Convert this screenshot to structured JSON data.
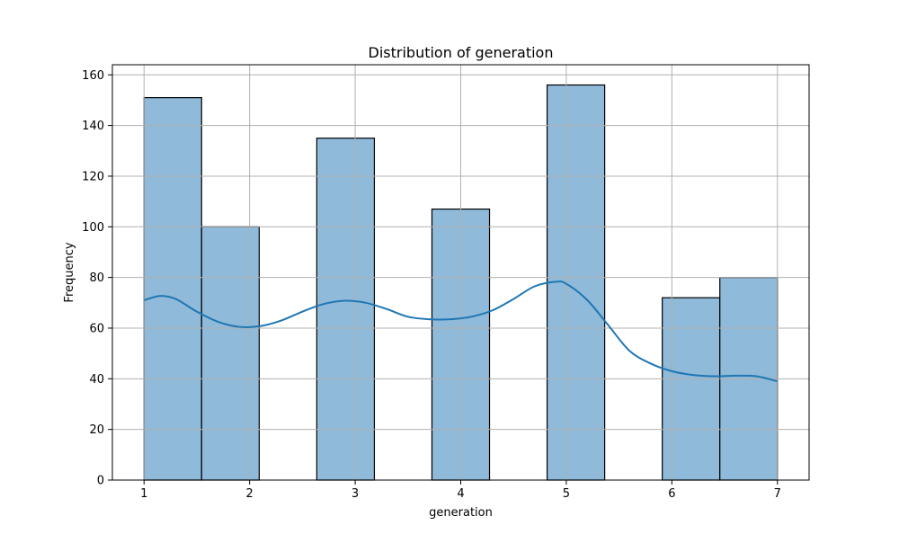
{
  "chart_data": {
    "type": "bar",
    "title": "Distribution of generation",
    "xlabel": "generation",
    "ylabel": "Frequency",
    "xlim": [
      0.7,
      7.3
    ],
    "ylim": [
      0,
      164
    ],
    "grid": true,
    "x_ticks": [
      1,
      2,
      3,
      4,
      5,
      6,
      7
    ],
    "y_ticks": [
      0,
      20,
      40,
      60,
      80,
      100,
      120,
      140,
      160
    ],
    "bins": [
      {
        "start": 1.0,
        "end": 1.5454545,
        "count": 151
      },
      {
        "start": 1.5454545,
        "end": 2.0909091,
        "count": 100
      },
      {
        "start": 2.0909091,
        "end": 2.6363636,
        "count": 0
      },
      {
        "start": 2.6363636,
        "end": 3.1818182,
        "count": 135
      },
      {
        "start": 3.1818182,
        "end": 3.7272727,
        "count": 0
      },
      {
        "start": 3.7272727,
        "end": 4.2727273,
        "count": 107
      },
      {
        "start": 4.2727273,
        "end": 4.8181818,
        "count": 0
      },
      {
        "start": 4.8181818,
        "end": 5.3636364,
        "count": 156
      },
      {
        "start": 5.3636364,
        "end": 5.9090909,
        "count": 0
      },
      {
        "start": 5.9090909,
        "end": 6.4545455,
        "count": 72
      },
      {
        "start": 6.4545455,
        "end": 7.0,
        "count": 80
      }
    ],
    "kde": {
      "x": [
        1.0,
        1.15,
        1.3,
        1.5,
        1.7,
        1.9,
        2.1,
        2.3,
        2.5,
        2.7,
        2.9,
        3.1,
        3.3,
        3.5,
        3.7,
        3.9,
        4.1,
        4.3,
        4.5,
        4.7,
        4.9,
        5.0,
        5.2,
        5.4,
        5.6,
        5.8,
        6.0,
        6.2,
        6.4,
        6.6,
        6.8,
        7.0
      ],
      "y": [
        71,
        72.7,
        71.5,
        66.5,
        62.5,
        60.5,
        60.8,
        63,
        66.5,
        69.5,
        70.8,
        70,
        67.5,
        64.5,
        63.5,
        63.5,
        64.5,
        67,
        71.5,
        76.5,
        78.3,
        77.5,
        71,
        61,
        51,
        46,
        43,
        41.5,
        41,
        41.2,
        41,
        39
      ]
    },
    "colors": {
      "bar_fill": "#8fbad9",
      "bar_edge": "#000000",
      "kde_line": "#1f77b4",
      "grid": "#b0b0b0"
    }
  }
}
